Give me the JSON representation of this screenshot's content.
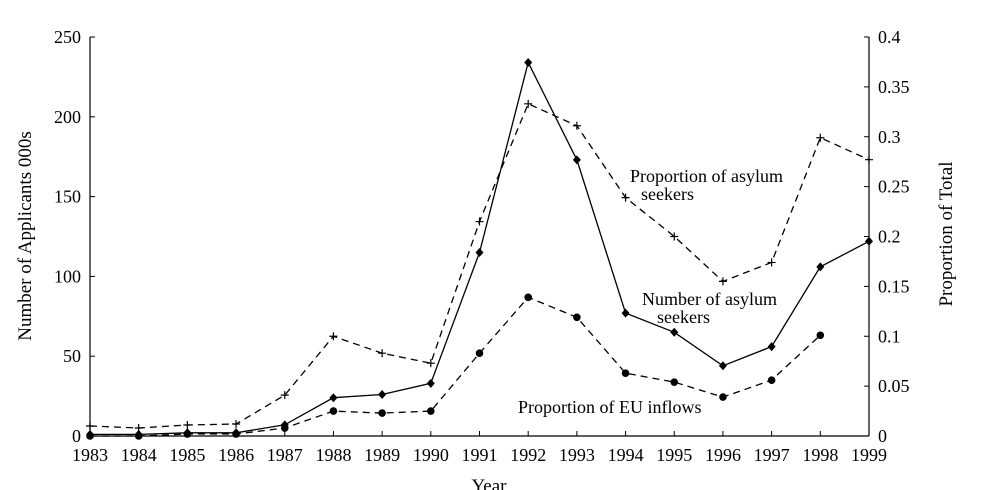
{
  "chart_data": {
    "type": "line",
    "x": [
      1983,
      1984,
      1985,
      1986,
      1987,
      1988,
      1989,
      1990,
      1991,
      1992,
      1993,
      1994,
      1995,
      1996,
      1997,
      1998,
      1999
    ],
    "xlabel": "Year",
    "ylabel_left": "Number of Applicants 000s",
    "ylabel_right": "Proportion of Total",
    "ylim_left": [
      0,
      250
    ],
    "ylim_right": [
      0,
      0.4
    ],
    "xlim": [
      1983,
      1999
    ],
    "x_ticks": [
      "1983",
      "1984",
      "1985",
      "1986",
      "1987",
      "1988",
      "1989",
      "1990",
      "1991",
      "1992",
      "1993",
      "1994",
      "1995",
      "1996",
      "1997",
      "1998",
      "1999"
    ],
    "y_ticks_left": [
      "0",
      "50",
      "100",
      "150",
      "200",
      "250"
    ],
    "y_ticks_right": [
      "0",
      "0.05",
      "0.1",
      "0.15",
      "0.2",
      "0.25",
      "0.3",
      "0.35",
      "0.4"
    ],
    "grid": false,
    "legend": "none",
    "series": [
      {
        "name": "Number of asylum seekers",
        "axis": "left",
        "style": "solid",
        "marker": "diamond",
        "values": [
          1,
          1,
          2,
          2,
          7,
          24,
          26,
          33,
          115,
          234,
          173,
          77,
          65,
          44,
          56,
          106,
          122
        ]
      },
      {
        "name": "Proportion of asylum seekers",
        "axis": "right",
        "style": "dashed",
        "marker": "plus",
        "values": [
          0.01,
          0.008,
          0.011,
          0.012,
          0.041,
          0.1,
          0.083,
          0.073,
          0.215,
          0.333,
          0.311,
          0.239,
          0.2,
          0.155,
          0.174,
          0.299,
          0.277
        ]
      },
      {
        "name": "Proportion of EU inflows",
        "axis": "right",
        "style": "dashed",
        "marker": "circle",
        "values": [
          0,
          0,
          0.002,
          0.002,
          0.008,
          0.025,
          0.023,
          0.025,
          0.083,
          0.139,
          0.119,
          0.063,
          0.054,
          0.039,
          0.056,
          0.101,
          null
        ]
      }
    ],
    "annotations": [
      {
        "lines": [
          "Proportion of asylum",
          "seekers"
        ]
      },
      {
        "lines": [
          "Number of asylum",
          "seekers"
        ]
      },
      {
        "lines": [
          "Proportion of EU inflows"
        ]
      }
    ]
  }
}
